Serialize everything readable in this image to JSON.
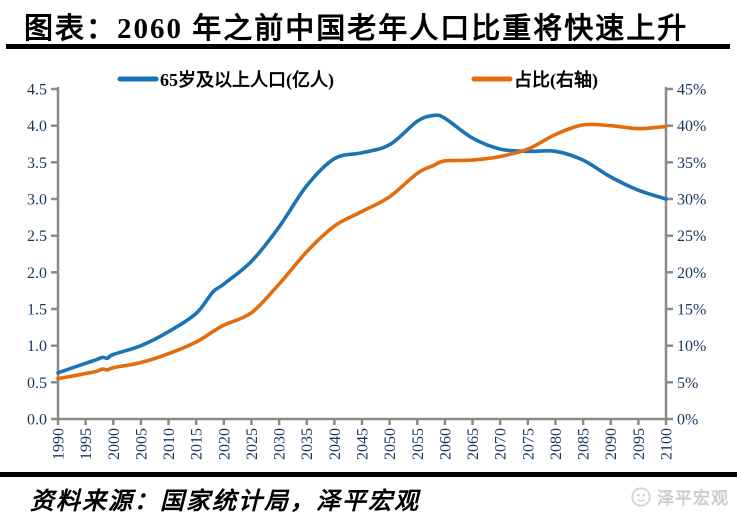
{
  "header": {
    "title": "图表：2060 年之前中国老年人口比重将快速上升"
  },
  "footer": {
    "source": "资料来源：国家统计局，泽平宏观",
    "watermark": "泽平宏观"
  },
  "chart_data": {
    "type": "line",
    "title": "2060 年之前中国老年人口比重将快速上升",
    "grid": false,
    "legend_position": "top",
    "x_range": [
      1990,
      2100
    ],
    "x_tick_years": [
      1990,
      1995,
      2000,
      2005,
      2010,
      2015,
      2020,
      2025,
      2030,
      2035,
      2040,
      2045,
      2050,
      2055,
      2060,
      2065,
      2070,
      2075,
      2080,
      2085,
      2090,
      2095,
      2100
    ],
    "left_axis": {
      "min": 0,
      "max": 4.5,
      "tick_step": 0.5,
      "tick_labels": [
        "0.0",
        "0.5",
        "1.0",
        "1.5",
        "2.0",
        "2.5",
        "3.0",
        "3.5",
        "4.0",
        "4.5"
      ]
    },
    "right_axis": {
      "min": 0,
      "max": 45,
      "tick_step": 5,
      "tick_labels": [
        "0%",
        "5%",
        "10%",
        "15%",
        "20%",
        "25%",
        "30%",
        "35%",
        "40%",
        "45%"
      ]
    },
    "legend": [
      {
        "label": "65岁及以上人口(亿人)",
        "color": "#1a73b5"
      },
      {
        "label": "占比(右轴)",
        "color": "#e36c0e"
      }
    ],
    "series": [
      {
        "name": "65岁及以上人口(亿人)",
        "axis": "left",
        "color": "#1a73b5",
        "x": [
          1990,
          1995,
          1997,
          1998,
          1999,
          2000,
          2005,
          2010,
          2015,
          2018,
          2020,
          2025,
          2030,
          2035,
          2040,
          2045,
          2050,
          2055,
          2058,
          2060,
          2065,
          2070,
          2075,
          2080,
          2085,
          2090,
          2095,
          2100
        ],
        "y": [
          0.63,
          0.76,
          0.81,
          0.84,
          0.83,
          0.88,
          1.0,
          1.19,
          1.44,
          1.73,
          1.84,
          2.15,
          2.62,
          3.18,
          3.55,
          3.63,
          3.74,
          4.06,
          4.14,
          4.1,
          3.83,
          3.68,
          3.65,
          3.65,
          3.53,
          3.3,
          3.12,
          3.0
        ]
      },
      {
        "name": "占比(右轴)",
        "axis": "right",
        "color": "#e36c0e",
        "x": [
          1990,
          1995,
          1997,
          1998,
          1999,
          2000,
          2005,
          2010,
          2015,
          2018,
          2020,
          2025,
          2030,
          2035,
          2040,
          2045,
          2050,
          2055,
          2058,
          2060,
          2065,
          2070,
          2075,
          2080,
          2085,
          2090,
          2095,
          2100
        ],
        "y": [
          5.5,
          6.2,
          6.5,
          6.8,
          6.7,
          7.0,
          7.7,
          8.9,
          10.5,
          11.9,
          12.8,
          14.5,
          18.4,
          22.8,
          26.3,
          28.3,
          30.3,
          33.5,
          34.6,
          35.2,
          35.3,
          35.8,
          36.8,
          38.8,
          40.1,
          40.0,
          39.6,
          39.9
        ]
      }
    ],
    "colors": {
      "axis": "#8a8a8a",
      "tick_label": "#17375e",
      "series_population": "#1a73b5",
      "series_share": "#e36c0e"
    }
  }
}
